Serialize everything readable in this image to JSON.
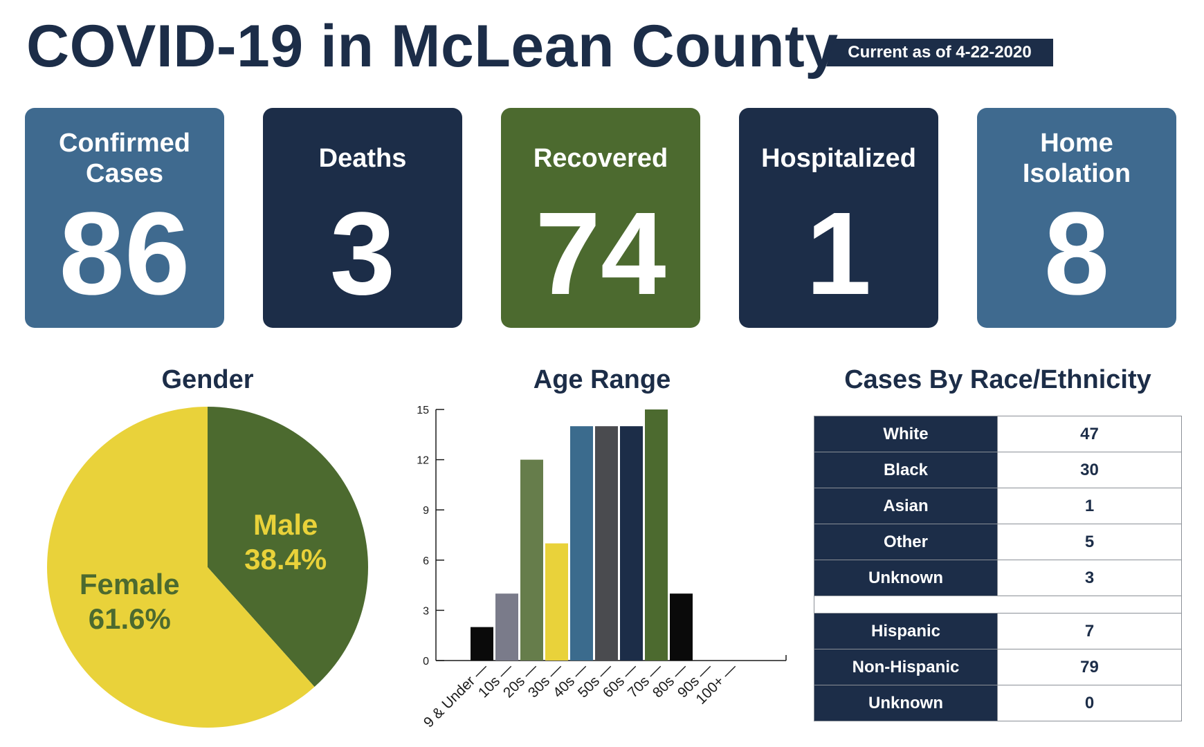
{
  "title": "COVID-19 in McLean County",
  "date_badge": "Current as of 4-22-2020",
  "stats": [
    {
      "label": "Confirmed Cases",
      "value": "86",
      "color": "#3f6a8f"
    },
    {
      "label": "Deaths",
      "value": "3",
      "color": "#1c2d48"
    },
    {
      "label": "Recovered",
      "value": "74",
      "color": "#4c6a2f"
    },
    {
      "label": "Hospitalized",
      "value": "1",
      "color": "#1c2d48"
    },
    {
      "label": "Home Isolation",
      "value": "8",
      "color": "#3f6a8f"
    }
  ],
  "chart_data": [
    {
      "type": "pie",
      "title": "Gender",
      "slices": [
        {
          "label": "Male",
          "value": 38.4,
          "display": "38.4%",
          "color": "#4c6a2f",
          "text_color": "#e9d23a"
        },
        {
          "label": "Female",
          "value": 61.6,
          "display": "61.6%",
          "color": "#e9d23a",
          "text_color": "#4c6a2f"
        }
      ]
    },
    {
      "type": "bar",
      "title": "Age Range",
      "categories": [
        "9 & Under",
        "10s",
        "20s",
        "30s",
        "40s",
        "50s",
        "60s",
        "70s",
        "80s",
        "90s",
        "100+"
      ],
      "values": [
        2,
        4,
        12,
        7,
        14,
        14,
        14,
        15,
        4,
        0,
        0
      ],
      "colors": [
        "#0a0a0a",
        "#7a7b8a",
        "#667d4b",
        "#e9d23a",
        "#3b6b8d",
        "#4a4b4f",
        "#1c2d48",
        "#4c6a2f",
        "#0a0a0a",
        "#0a0a0a",
        "#0a0a0a"
      ],
      "yticks": [
        0,
        3,
        6,
        9,
        12,
        15
      ],
      "ylim": [
        0,
        15
      ]
    },
    {
      "type": "table",
      "title": "Cases By Race/Ethnicity",
      "groups": [
        [
          {
            "label": "White",
            "value": "47"
          },
          {
            "label": "Black",
            "value": "30"
          },
          {
            "label": "Asian",
            "value": "1"
          },
          {
            "label": "Other",
            "value": "5"
          },
          {
            "label": "Unknown",
            "value": "3"
          }
        ],
        [
          {
            "label": "Hispanic",
            "value": "7"
          },
          {
            "label": "Non-Hispanic",
            "value": "79"
          },
          {
            "label": "Unknown",
            "value": "0"
          }
        ]
      ]
    }
  ]
}
